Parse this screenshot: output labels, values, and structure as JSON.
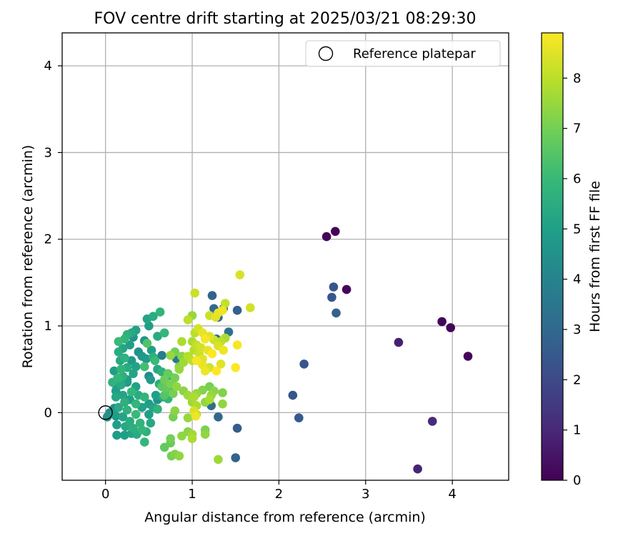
{
  "chart_data": {
    "type": "scatter",
    "title": "FOV centre drift starting at 2025/03/21 08:29:30",
    "xlabel": "Angular distance from reference (arcmin)",
    "ylabel": "Rotation from reference (arcmin)",
    "xlim": [
      -0.5,
      4.65
    ],
    "ylim": [
      -0.78,
      4.38
    ],
    "xticks": [
      0,
      1,
      2,
      3,
      4
    ],
    "yticks": [
      0,
      1,
      2,
      3,
      4
    ],
    "grid": true,
    "legend": {
      "placement": "top-right",
      "entries": [
        {
          "label": "Reference platepar",
          "marker": "open-circle"
        }
      ]
    },
    "reference_point": {
      "x": 0,
      "y": 0
    },
    "colorbar": {
      "label": "Hours from first FF file",
      "min": 0,
      "max": 8.9,
      "ticks": [
        0,
        1,
        2,
        3,
        4,
        5,
        6,
        7,
        8
      ],
      "colormap": "viridis"
    },
    "colormap_stops": [
      "#440154",
      "#482878",
      "#3e4989",
      "#31688e",
      "#26828e",
      "#1f9e89",
      "#35b779",
      "#6ece58",
      "#b5de2b",
      "#fde725"
    ],
    "points": [
      {
        "x": 2.55,
        "y": 2.03,
        "h": 0.1
      },
      {
        "x": 2.65,
        "y": 2.09,
        "h": 0.1
      },
      {
        "x": 2.78,
        "y": 1.42,
        "h": 0.1
      },
      {
        "x": 3.88,
        "y": 1.05,
        "h": 0.1
      },
      {
        "x": 3.98,
        "y": 0.98,
        "h": 0.1
      },
      {
        "x": 4.18,
        "y": 0.65,
        "h": 0.1
      },
      {
        "x": 3.38,
        "y": 0.81,
        "h": 0.8
      },
      {
        "x": 3.77,
        "y": -0.1,
        "h": 1.1
      },
      {
        "x": 3.6,
        "y": -0.65,
        "h": 0.9
      },
      {
        "x": 2.63,
        "y": 1.45,
        "h": 2.4
      },
      {
        "x": 2.61,
        "y": 1.33,
        "h": 2.4
      },
      {
        "x": 2.66,
        "y": 1.15,
        "h": 2.7
      },
      {
        "x": 2.29,
        "y": 0.56,
        "h": 2.4
      },
      {
        "x": 2.16,
        "y": 0.2,
        "h": 2.4
      },
      {
        "x": 2.23,
        "y": -0.06,
        "h": 2.5
      },
      {
        "x": 1.52,
        "y": 1.18,
        "h": 2.7
      },
      {
        "x": 1.52,
        "y": -0.18,
        "h": 2.6
      },
      {
        "x": 1.5,
        "y": -0.52,
        "h": 2.8
      },
      {
        "x": 1.23,
        "y": 1.35,
        "h": 2.8
      },
      {
        "x": 1.25,
        "y": 1.2,
        "h": 3.0
      },
      {
        "x": 1.3,
        "y": 1.1,
        "h": 2.9
      },
      {
        "x": 1.36,
        "y": 1.2,
        "h": 3.2
      },
      {
        "x": 1.42,
        "y": 0.93,
        "h": 3.3
      },
      {
        "x": 1.3,
        "y": -0.05,
        "h": 3.0
      },
      {
        "x": 1.22,
        "y": 0.08,
        "h": 3.1
      },
      {
        "x": 1.28,
        "y": 0.85,
        "h": 3.4
      },
      {
        "x": 0.82,
        "y": 0.62,
        "h": 3.6
      },
      {
        "x": 0.65,
        "y": 0.66,
        "h": 3.8
      },
      {
        "x": 0.5,
        "y": 0.42,
        "h": 4.2
      },
      {
        "x": 0.48,
        "y": 1.08,
        "h": 5.2
      },
      {
        "x": 0.55,
        "y": 1.11,
        "h": 5.5
      },
      {
        "x": 0.63,
        "y": 1.16,
        "h": 5.8
      },
      {
        "x": 0.5,
        "y": 1.0,
        "h": 5.0
      },
      {
        "x": 0.45,
        "y": 0.83,
        "h": 4.6
      },
      {
        "x": 0.6,
        "y": 0.88,
        "h": 5.4
      },
      {
        "x": 0.68,
        "y": 0.92,
        "h": 5.9
      },
      {
        "x": 0.48,
        "y": 0.8,
        "h": 6.4
      },
      {
        "x": 0.53,
        "y": 0.72,
        "h": 5.0
      },
      {
        "x": 0.47,
        "y": 0.62,
        "h": 4.8
      },
      {
        "x": 0.55,
        "y": 0.64,
        "h": 5.6
      },
      {
        "x": 0.57,
        "y": 0.6,
        "h": 6.0
      },
      {
        "x": 0.45,
        "y": 0.53,
        "h": 6.2
      },
      {
        "x": 0.6,
        "y": 0.5,
        "h": 5.3
      },
      {
        "x": 0.65,
        "y": 0.47,
        "h": 5.7
      },
      {
        "x": 0.72,
        "y": 0.45,
        "h": 6.1
      },
      {
        "x": 0.78,
        "y": 0.4,
        "h": 5.0
      },
      {
        "x": 0.52,
        "y": 0.38,
        "h": 4.8
      },
      {
        "x": 0.62,
        "y": 0.33,
        "h": 5.5
      },
      {
        "x": 0.7,
        "y": 0.28,
        "h": 5.9
      },
      {
        "x": 0.75,
        "y": 0.25,
        "h": 6.2
      },
      {
        "x": 0.58,
        "y": 0.2,
        "h": 5.0
      },
      {
        "x": 0.66,
        "y": 0.18,
        "h": 5.4
      },
      {
        "x": 0.72,
        "y": 0.16,
        "h": 5.8
      },
      {
        "x": 0.5,
        "y": 0.1,
        "h": 4.9
      },
      {
        "x": 0.55,
        "y": 0.06,
        "h": 5.2
      },
      {
        "x": 0.6,
        "y": 0.04,
        "h": 5.7
      },
      {
        "x": 0.5,
        "y": -0.02,
        "h": 5.0
      },
      {
        "x": 0.52,
        "y": -0.12,
        "h": 5.3
      },
      {
        "x": 0.47,
        "y": -0.22,
        "h": 5.6
      },
      {
        "x": 0.45,
        "y": -0.34,
        "h": 5.9
      },
      {
        "x": 0.35,
        "y": 0.95,
        "h": 5.1
      },
      {
        "x": 0.3,
        "y": 0.92,
        "h": 5.3
      },
      {
        "x": 0.25,
        "y": 0.9,
        "h": 5.6
      },
      {
        "x": 0.22,
        "y": 0.85,
        "h": 5.8
      },
      {
        "x": 0.15,
        "y": 0.82,
        "h": 6.0
      },
      {
        "x": 0.28,
        "y": 0.78,
        "h": 5.0
      },
      {
        "x": 0.2,
        "y": 0.74,
        "h": 5.2
      },
      {
        "x": 0.15,
        "y": 0.7,
        "h": 5.5
      },
      {
        "x": 0.22,
        "y": 0.63,
        "h": 5.7
      },
      {
        "x": 0.3,
        "y": 0.6,
        "h": 4.8
      },
      {
        "x": 0.17,
        "y": 0.6,
        "h": 5.3
      },
      {
        "x": 0.35,
        "y": 0.53,
        "h": 5.1
      },
      {
        "x": 0.25,
        "y": 0.52,
        "h": 5.4
      },
      {
        "x": 0.18,
        "y": 0.5,
        "h": 5.8
      },
      {
        "x": 0.1,
        "y": 0.48,
        "h": 5.0
      },
      {
        "x": 0.32,
        "y": 0.45,
        "h": 5.2
      },
      {
        "x": 0.2,
        "y": 0.42,
        "h": 5.6
      },
      {
        "x": 0.14,
        "y": 0.4,
        "h": 5.9
      },
      {
        "x": 0.25,
        "y": 0.35,
        "h": 4.8
      },
      {
        "x": 0.35,
        "y": 0.3,
        "h": 5.1
      },
      {
        "x": 0.18,
        "y": 0.32,
        "h": 5.4
      },
      {
        "x": 0.08,
        "y": 0.35,
        "h": 5.7
      },
      {
        "x": 0.3,
        "y": 0.24,
        "h": 5.9
      },
      {
        "x": 0.12,
        "y": 0.25,
        "h": 5.0
      },
      {
        "x": 0.2,
        "y": 0.2,
        "h": 5.2
      },
      {
        "x": 0.38,
        "y": 0.2,
        "h": 5.5
      },
      {
        "x": 0.45,
        "y": 0.18,
        "h": 5.8
      },
      {
        "x": 0.28,
        "y": 0.15,
        "h": 5.0
      },
      {
        "x": 0.12,
        "y": 0.18,
        "h": 5.3
      },
      {
        "x": 0.22,
        "y": 0.12,
        "h": 5.6
      },
      {
        "x": 0.35,
        "y": 0.1,
        "h": 5.9
      },
      {
        "x": 0.42,
        "y": 0.06,
        "h": 5.1
      },
      {
        "x": 0.15,
        "y": 0.06,
        "h": 5.4
      },
      {
        "x": 0.25,
        "y": 0.03,
        "h": 5.7
      },
      {
        "x": 0.35,
        "y": -0.02,
        "h": 6.0
      },
      {
        "x": 0.1,
        "y": -0.02,
        "h": 5.0
      },
      {
        "x": 0.2,
        "y": -0.05,
        "h": 5.2
      },
      {
        "x": 0.28,
        "y": -0.1,
        "h": 5.5
      },
      {
        "x": 0.4,
        "y": -0.12,
        "h": 5.8
      },
      {
        "x": 0.13,
        "y": -0.14,
        "h": 5.0
      },
      {
        "x": 0.23,
        "y": -0.16,
        "h": 5.3
      },
      {
        "x": 0.32,
        "y": -0.18,
        "h": 5.6
      },
      {
        "x": 0.42,
        "y": -0.2,
        "h": 5.9
      },
      {
        "x": 0.3,
        "y": -0.24,
        "h": 5.1
      },
      {
        "x": 0.36,
        "y": -0.25,
        "h": 5.4
      },
      {
        "x": 0.22,
        "y": -0.26,
        "h": 5.0
      },
      {
        "x": 0.13,
        "y": -0.26,
        "h": 4.9
      },
      {
        "x": 0.05,
        "y": 0.0,
        "h": 4.4
      },
      {
        "x": 0.1,
        "y": 0.05,
        "h": 4.3
      },
      {
        "x": 0.12,
        "y": -0.04,
        "h": 4.6
      },
      {
        "x": 0.02,
        "y": -0.05,
        "h": 4.5
      },
      {
        "x": 0.13,
        "y": 0.3,
        "h": 4.7
      },
      {
        "x": 0.32,
        "y": 0.87,
        "h": 4.6
      },
      {
        "x": 0.25,
        "y": 0.38,
        "h": 4.9
      },
      {
        "x": 0.38,
        "y": 0.7,
        "h": 4.5
      },
      {
        "x": 0.42,
        "y": 0.65,
        "h": 4.7
      },
      {
        "x": 0.6,
        "y": 0.15,
        "h": 4.5
      },
      {
        "x": 0.75,
        "y": 0.66,
        "h": 7.5
      },
      {
        "x": 0.8,
        "y": 0.7,
        "h": 7.0
      },
      {
        "x": 0.88,
        "y": 0.65,
        "h": 7.3
      },
      {
        "x": 0.9,
        "y": 0.58,
        "h": 7.6
      },
      {
        "x": 0.85,
        "y": 0.53,
        "h": 7.2
      },
      {
        "x": 0.72,
        "y": 0.45,
        "h": 6.8
      },
      {
        "x": 0.8,
        "y": 0.4,
        "h": 7.0
      },
      {
        "x": 0.68,
        "y": 0.38,
        "h": 6.9
      },
      {
        "x": 0.75,
        "y": 0.33,
        "h": 7.1
      },
      {
        "x": 0.82,
        "y": 0.3,
        "h": 7.4
      },
      {
        "x": 0.7,
        "y": 0.28,
        "h": 6.7
      },
      {
        "x": 0.68,
        "y": 0.2,
        "h": 6.5
      },
      {
        "x": 0.78,
        "y": 0.22,
        "h": 7.0
      },
      {
        "x": 0.9,
        "y": 0.25,
        "h": 7.3
      },
      {
        "x": 0.95,
        "y": 0.2,
        "h": 7.6
      },
      {
        "x": 1.02,
        "y": 0.18,
        "h": 7.8
      },
      {
        "x": 1.05,
        "y": 0.22,
        "h": 7.5
      },
      {
        "x": 1.12,
        "y": 0.26,
        "h": 7.2
      },
      {
        "x": 1.2,
        "y": 0.3,
        "h": 7.0
      },
      {
        "x": 1.25,
        "y": 0.25,
        "h": 7.3
      },
      {
        "x": 1.22,
        "y": 0.2,
        "h": 7.5
      },
      {
        "x": 1.2,
        "y": 0.15,
        "h": 7.7
      },
      {
        "x": 1.15,
        "y": 0.12,
        "h": 7.4
      },
      {
        "x": 1.05,
        "y": 0.08,
        "h": 7.8
      },
      {
        "x": 1.0,
        "y": 0.12,
        "h": 7.6
      },
      {
        "x": 1.35,
        "y": 0.23,
        "h": 7.2
      },
      {
        "x": 1.35,
        "y": 0.1,
        "h": 7.4
      },
      {
        "x": 1.05,
        "y": -0.02,
        "h": 7.9
      },
      {
        "x": 0.95,
        "y": -0.06,
        "h": 7.5
      },
      {
        "x": 0.8,
        "y": 0.02,
        "h": 7.3
      },
      {
        "x": 0.78,
        "y": -0.05,
        "h": 7.0
      },
      {
        "x": 0.95,
        "y": -0.22,
        "h": 7.3
      },
      {
        "x": 1.0,
        "y": -0.25,
        "h": 7.6
      },
      {
        "x": 0.88,
        "y": -0.27,
        "h": 7.4
      },
      {
        "x": 1.0,
        "y": -0.3,
        "h": 7.8
      },
      {
        "x": 1.15,
        "y": -0.2,
        "h": 7.1
      },
      {
        "x": 1.15,
        "y": -0.25,
        "h": 7.4
      },
      {
        "x": 0.75,
        "y": -0.3,
        "h": 7.0
      },
      {
        "x": 0.75,
        "y": -0.35,
        "h": 6.8
      },
      {
        "x": 0.68,
        "y": -0.4,
        "h": 6.7
      },
      {
        "x": 0.8,
        "y": -0.48,
        "h": 7.2
      },
      {
        "x": 0.76,
        "y": -0.5,
        "h": 7.0
      },
      {
        "x": 0.85,
        "y": -0.5,
        "h": 7.4
      },
      {
        "x": 1.3,
        "y": -0.54,
        "h": 7.6
      },
      {
        "x": 0.85,
        "y": 0.5,
        "h": 7.5
      },
      {
        "x": 0.65,
        "y": 0.3,
        "h": 6.6
      },
      {
        "x": 0.88,
        "y": 0.82,
        "h": 7.8
      },
      {
        "x": 0.95,
        "y": 1.07,
        "h": 8.0
      },
      {
        "x": 1.0,
        "y": 1.12,
        "h": 7.5
      },
      {
        "x": 1.03,
        "y": 1.38,
        "h": 8.2
      },
      {
        "x": 1.55,
        "y": 1.59,
        "h": 8.4
      },
      {
        "x": 1.67,
        "y": 1.21,
        "h": 8.3
      },
      {
        "x": 1.38,
        "y": 1.26,
        "h": 8.1
      },
      {
        "x": 1.27,
        "y": 1.1,
        "h": 8.5
      },
      {
        "x": 1.3,
        "y": 1.15,
        "h": 8.6
      },
      {
        "x": 1.35,
        "y": 1.18,
        "h": 8.7
      },
      {
        "x": 1.2,
        "y": 1.12,
        "h": 8.2
      },
      {
        "x": 1.03,
        "y": 0.92,
        "h": 8.0
      },
      {
        "x": 1.07,
        "y": 0.97,
        "h": 8.3
      },
      {
        "x": 1.12,
        "y": 0.92,
        "h": 8.6
      },
      {
        "x": 1.15,
        "y": 0.85,
        "h": 8.8
      },
      {
        "x": 1.2,
        "y": 0.88,
        "h": 8.5
      },
      {
        "x": 1.25,
        "y": 0.84,
        "h": 8.2
      },
      {
        "x": 1.33,
        "y": 0.82,
        "h": 8.0
      },
      {
        "x": 1.38,
        "y": 0.86,
        "h": 7.8
      },
      {
        "x": 1.3,
        "y": 0.77,
        "h": 8.4
      },
      {
        "x": 1.36,
        "y": 0.72,
        "h": 8.7
      },
      {
        "x": 1.23,
        "y": 0.68,
        "h": 8.9
      },
      {
        "x": 1.18,
        "y": 0.72,
        "h": 8.6
      },
      {
        "x": 1.1,
        "y": 0.75,
        "h": 8.3
      },
      {
        "x": 1.05,
        "y": 0.78,
        "h": 8.1
      },
      {
        "x": 1.02,
        "y": 0.72,
        "h": 7.9
      },
      {
        "x": 1.08,
        "y": 0.68,
        "h": 8.2
      },
      {
        "x": 1.12,
        "y": 0.62,
        "h": 8.5
      },
      {
        "x": 1.05,
        "y": 0.6,
        "h": 8.8
      },
      {
        "x": 1.12,
        "y": 0.55,
        "h": 8.6
      },
      {
        "x": 1.2,
        "y": 0.52,
        "h": 8.3
      },
      {
        "x": 1.28,
        "y": 0.48,
        "h": 8.9
      },
      {
        "x": 1.15,
        "y": 0.48,
        "h": 8.7
      },
      {
        "x": 1.33,
        "y": 0.56,
        "h": 8.5
      },
      {
        "x": 1.52,
        "y": 0.78,
        "h": 8.8
      },
      {
        "x": 1.5,
        "y": 0.52,
        "h": 8.9
      },
      {
        "x": 1.0,
        "y": 0.82,
        "h": 7.8
      },
      {
        "x": 1.02,
        "y": 0.02,
        "h": 8.4
      },
      {
        "x": 1.04,
        "y": -0.04,
        "h": 8.7
      },
      {
        "x": 1.0,
        "y": 0.6,
        "h": 8.0
      },
      {
        "x": 0.95,
        "y": 0.65,
        "h": 7.9
      }
    ]
  }
}
